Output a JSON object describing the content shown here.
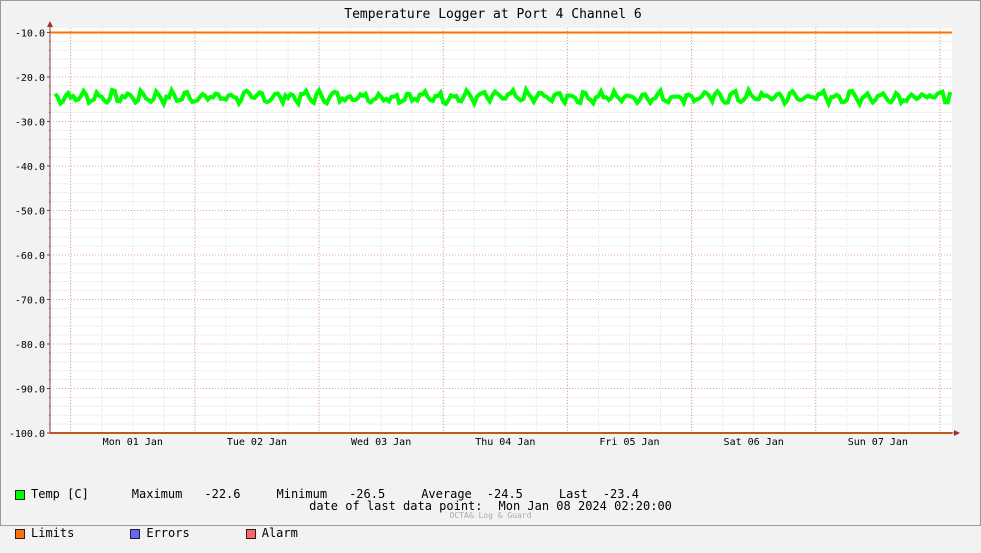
{
  "chart_data": {
    "type": "line",
    "title": "Temperature Logger at Port 4 Channel 6",
    "y_ticks": [
      "-10.0",
      "-20.0",
      "-30.0",
      "-40.0",
      "-50.0",
      "-60.0",
      "-70.0",
      "-80.0",
      "-90.0",
      "-100.0"
    ],
    "x_ticks": [
      "Mon 01 Jan",
      "Tue 02 Jan",
      "Wed 03 Jan",
      "Thu 04 Jan",
      "Fri 05 Jan",
      "Sat 06 Jan",
      "Sun 07 Jan"
    ],
    "ylim": [
      -100,
      -9
    ],
    "xlim": [
      "2023-12-31 20:00",
      "2024-01-08 02:20"
    ],
    "grid": true,
    "series": [
      {
        "name": "Temp [C]",
        "color": "#00ff00",
        "min": -26.5,
        "max": -22.6,
        "mean": -24.5,
        "last": -23.4
      },
      {
        "name": "Limits",
        "color": "#ff7000",
        "values": [
          -10.0,
          -100.0
        ]
      }
    ]
  },
  "legend": {
    "temp_label": "Temp [C]",
    "max_label": "Maximum",
    "max_value": "-22.6",
    "min_label": "Minimum",
    "min_value": "-26.5",
    "avg_label": "Average",
    "avg_value": "-24.5",
    "last_label": "Last",
    "last_value": "-23.4",
    "limits_label": "Limits",
    "errors_label": "Errors",
    "alarm_label": "Alarm",
    "colors": {
      "temp": "#00ff00",
      "limits": "#ff7000",
      "errors": "#6666ff",
      "alarm": "#ff6666"
    }
  },
  "footer": {
    "label": "date of last data point:",
    "value": "Mon Jan 08 2024 02:20:00",
    "watermark": "OCTA& Log & Guard"
  }
}
